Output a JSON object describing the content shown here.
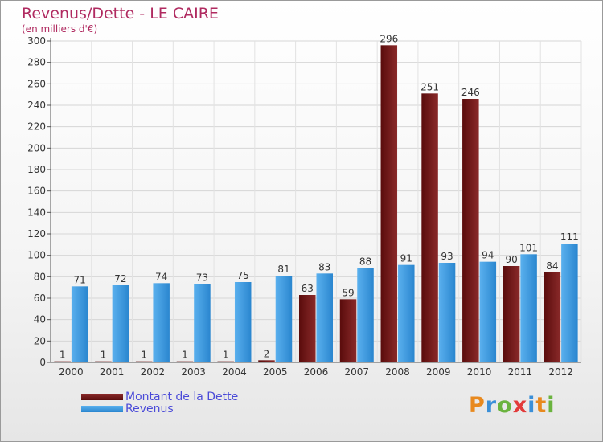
{
  "header": {
    "title": "Revenus/Dette - LE CAIRE",
    "subtitle": "(en milliers d'€)"
  },
  "legend": {
    "debt_label": "Montant de la Dette",
    "revenue_label": "Revenus"
  },
  "logo": {
    "text": "Proxiti",
    "letter_colors": [
      "#e8891e",
      "#3a8fd8",
      "#6ab33e",
      "#e23a3a",
      "#3a8fd8",
      "#e8891e",
      "#6ab33e"
    ]
  },
  "colors": {
    "debt": "#7a1818",
    "revenue": "#3d9be0",
    "title": "#b02a60"
  },
  "chart_data": {
    "type": "bar",
    "title": "Revenus/Dette - LE CAIRE",
    "subtitle": "(en milliers d'€)",
    "categories": [
      "2000",
      "2001",
      "2002",
      "2003",
      "2004",
      "2005",
      "2006",
      "2007",
      "2008",
      "2009",
      "2010",
      "2011",
      "2012"
    ],
    "series": [
      {
        "name": "Montant de la Dette",
        "values": [
          1,
          1,
          1,
          1,
          1,
          2,
          63,
          59,
          296,
          251,
          246,
          90,
          84
        ]
      },
      {
        "name": "Revenus",
        "values": [
          71,
          72,
          74,
          73,
          75,
          81,
          83,
          88,
          91,
          93,
          94,
          101,
          111
        ]
      }
    ],
    "ylim": [
      0,
      300
    ],
    "yticks": [
      0,
      20,
      40,
      60,
      80,
      100,
      120,
      140,
      160,
      180,
      200,
      220,
      240,
      260,
      280,
      300
    ],
    "grid": true,
    "legend_position": "bottom-left"
  }
}
